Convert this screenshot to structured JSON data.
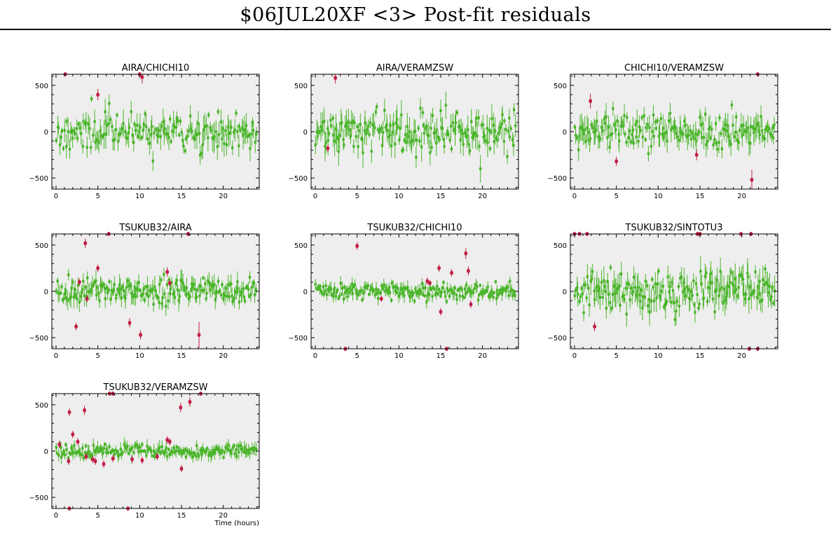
{
  "title": "$06JUL20XF <3> Post-fit residuals",
  "x_axis_label": "Time (hours)",
  "colors": {
    "panel_background": "#eeeeee",
    "used_point": "#4ab52a",
    "flagged_point": "#c21e45",
    "axis": "#000000"
  },
  "chart_data": [
    {
      "type": "scatter",
      "title": "AIRA/CHICHI10",
      "xlim": [
        -0.5,
        24.3
      ],
      "ylim": [
        -620,
        620
      ],
      "x_ticks": [
        0,
        5,
        10,
        15,
        20
      ],
      "y_ticks": [
        -500,
        0,
        500
      ],
      "grid": false,
      "seed": 11,
      "used": {
        "count": 170,
        "spread": 100,
        "err_range": [
          25,
          160
        ],
        "x_range": [
          0,
          24
        ]
      },
      "flagged": [
        {
          "x": 1.1,
          "y": 620,
          "err": 0
        },
        {
          "x": 5.0,
          "y": 400,
          "err": 60
        },
        {
          "x": 10.0,
          "y": 620,
          "err": 0
        },
        {
          "x": 10.3,
          "y": 590,
          "err": 70
        }
      ]
    },
    {
      "type": "scatter",
      "title": "AIRA/VERAMZSW",
      "xlim": [
        -0.5,
        24.3
      ],
      "ylim": [
        -620,
        620
      ],
      "x_ticks": [
        0,
        5,
        10,
        15,
        20
      ],
      "y_ticks": [
        -500,
        0,
        500
      ],
      "grid": false,
      "seed": 23,
      "used": {
        "count": 190,
        "spread": 110,
        "err_range": [
          30,
          170
        ],
        "x_range": [
          0,
          24
        ]
      },
      "flagged": [
        {
          "x": 1.5,
          "y": -180,
          "err": 40
        },
        {
          "x": 2.4,
          "y": 580,
          "err": 60
        }
      ]
    },
    {
      "type": "scatter",
      "title": "CHICHI10/VERAMZSW",
      "xlim": [
        -0.5,
        24.3
      ],
      "ylim": [
        -620,
        620
      ],
      "x_ticks": [
        0,
        5,
        10,
        15,
        20
      ],
      "y_ticks": [
        -500,
        0,
        500
      ],
      "grid": false,
      "seed": 37,
      "used": {
        "count": 180,
        "spread": 95,
        "err_range": [
          25,
          150
        ],
        "x_range": [
          0,
          24
        ]
      },
      "flagged": [
        {
          "x": 1.9,
          "y": 330,
          "err": 80
        },
        {
          "x": 5.0,
          "y": -320,
          "err": 50
        },
        {
          "x": 14.6,
          "y": -250,
          "err": 60
        },
        {
          "x": 21.2,
          "y": -520,
          "err": 110
        },
        {
          "x": 21.9,
          "y": 620,
          "err": 0
        }
      ]
    },
    {
      "type": "scatter",
      "title": "TSUKUB32/AIRA",
      "xlim": [
        -0.5,
        24.3
      ],
      "ylim": [
        -620,
        620
      ],
      "x_ticks": [
        0,
        5,
        10,
        15,
        20
      ],
      "y_ticks": [
        -500,
        0,
        500
      ],
      "grid": false,
      "seed": 41,
      "used": {
        "count": 200,
        "spread": 70,
        "err_range": [
          20,
          120
        ],
        "x_range": [
          0,
          24
        ]
      },
      "flagged": [
        {
          "x": 2.4,
          "y": -380,
          "err": 40
        },
        {
          "x": 2.8,
          "y": 100,
          "err": 40
        },
        {
          "x": 3.5,
          "y": 520,
          "err": 50
        },
        {
          "x": 3.7,
          "y": -80,
          "err": 40
        },
        {
          "x": 5.0,
          "y": 250,
          "err": 40
        },
        {
          "x": 6.3,
          "y": 620,
          "err": 0
        },
        {
          "x": 8.8,
          "y": -340,
          "err": 50
        },
        {
          "x": 10.1,
          "y": -470,
          "err": 50
        },
        {
          "x": 13.3,
          "y": 210,
          "err": 50
        },
        {
          "x": 13.6,
          "y": 90,
          "err": 40
        },
        {
          "x": 15.8,
          "y": 620,
          "err": 0
        },
        {
          "x": 17.1,
          "y": -470,
          "err": 140
        }
      ]
    },
    {
      "type": "scatter",
      "title": "TSUKUB32/CHICHI10",
      "xlim": [
        -0.5,
        24.3
      ],
      "ylim": [
        -620,
        620
      ],
      "x_ticks": [
        0,
        5,
        10,
        15,
        20
      ],
      "y_ticks": [
        -500,
        0,
        500
      ],
      "grid": false,
      "seed": 53,
      "used": {
        "count": 210,
        "spread": 45,
        "err_range": [
          15,
          80
        ],
        "x_range": [
          0,
          24
        ]
      },
      "flagged": [
        {
          "x": 3.6,
          "y": -620,
          "err": 0
        },
        {
          "x": 5.0,
          "y": 490,
          "err": 40
        },
        {
          "x": 7.9,
          "y": -80,
          "err": 30
        },
        {
          "x": 13.4,
          "y": 110,
          "err": 40
        },
        {
          "x": 13.7,
          "y": 90,
          "err": 30
        },
        {
          "x": 14.8,
          "y": 250,
          "err": 40
        },
        {
          "x": 15.0,
          "y": -220,
          "err": 40
        },
        {
          "x": 15.7,
          "y": -620,
          "err": 0
        },
        {
          "x": 16.3,
          "y": 200,
          "err": 40
        },
        {
          "x": 18.0,
          "y": 410,
          "err": 60
        },
        {
          "x": 18.3,
          "y": 220,
          "err": 50
        },
        {
          "x": 18.6,
          "y": -140,
          "err": 40
        }
      ]
    },
    {
      "type": "scatter",
      "title": "TSUKUB32/SINTOTU3",
      "xlim": [
        -0.5,
        24.3
      ],
      "ylim": [
        -620,
        620
      ],
      "x_ticks": [
        0,
        5,
        10,
        15,
        20
      ],
      "y_ticks": [
        -500,
        0,
        500
      ],
      "grid": false,
      "seed": 67,
      "used": {
        "count": 190,
        "spread": 95,
        "err_range": [
          30,
          170
        ],
        "x_range": [
          0,
          24
        ]
      },
      "flagged": [
        {
          "x": 0.0,
          "y": 620,
          "err": 0
        },
        {
          "x": 0.6,
          "y": 620,
          "err": 0
        },
        {
          "x": 1.5,
          "y": 620,
          "err": 0
        },
        {
          "x": 2.4,
          "y": -380,
          "err": 50
        },
        {
          "x": 14.7,
          "y": 620,
          "err": 0
        },
        {
          "x": 15.0,
          "y": 620,
          "err": 0
        },
        {
          "x": 19.9,
          "y": 620,
          "err": 0
        },
        {
          "x": 20.9,
          "y": -620,
          "err": 0
        },
        {
          "x": 21.1,
          "y": 620,
          "err": 0
        },
        {
          "x": 21.9,
          "y": -620,
          "err": 0
        }
      ]
    },
    {
      "type": "scatter",
      "title": "TSUKUB32/VERAMZSW",
      "xlim": [
        -0.5,
        24.3
      ],
      "ylim": [
        -620,
        620
      ],
      "x_ticks": [
        0,
        5,
        10,
        15,
        20
      ],
      "y_ticks": [
        -500,
        0,
        500
      ],
      "grid": false,
      "seed": 79,
      "used": {
        "count": 190,
        "spread": 35,
        "err_range": [
          15,
          80
        ],
        "x_range": [
          0,
          24
        ]
      },
      "flagged": [
        {
          "x": 0.4,
          "y": 70,
          "err": 40
        },
        {
          "x": 1.5,
          "y": -110,
          "err": 40
        },
        {
          "x": 1.6,
          "y": 420,
          "err": 40
        },
        {
          "x": 1.6,
          "y": -620,
          "err": 0
        },
        {
          "x": 2.0,
          "y": 180,
          "err": 40
        },
        {
          "x": 2.6,
          "y": 100,
          "err": 40
        },
        {
          "x": 3.4,
          "y": 440,
          "err": 50
        },
        {
          "x": 3.6,
          "y": -60,
          "err": 40
        },
        {
          "x": 4.4,
          "y": -90,
          "err": 40
        },
        {
          "x": 4.7,
          "y": -110,
          "err": 40
        },
        {
          "x": 5.7,
          "y": -140,
          "err": 40
        },
        {
          "x": 6.4,
          "y": 620,
          "err": 0
        },
        {
          "x": 6.8,
          "y": 620,
          "err": 0
        },
        {
          "x": 6.8,
          "y": -80,
          "err": 40
        },
        {
          "x": 8.6,
          "y": -620,
          "err": 0
        },
        {
          "x": 9.1,
          "y": -90,
          "err": 40
        },
        {
          "x": 10.3,
          "y": -100,
          "err": 40
        },
        {
          "x": 12.1,
          "y": -60,
          "err": 40
        },
        {
          "x": 13.3,
          "y": 120,
          "err": 40
        },
        {
          "x": 13.6,
          "y": 100,
          "err": 40
        },
        {
          "x": 14.9,
          "y": 470,
          "err": 50
        },
        {
          "x": 15.0,
          "y": -190,
          "err": 40
        },
        {
          "x": 16.0,
          "y": 530,
          "err": 50
        },
        {
          "x": 17.3,
          "y": 620,
          "err": 0
        }
      ]
    }
  ]
}
